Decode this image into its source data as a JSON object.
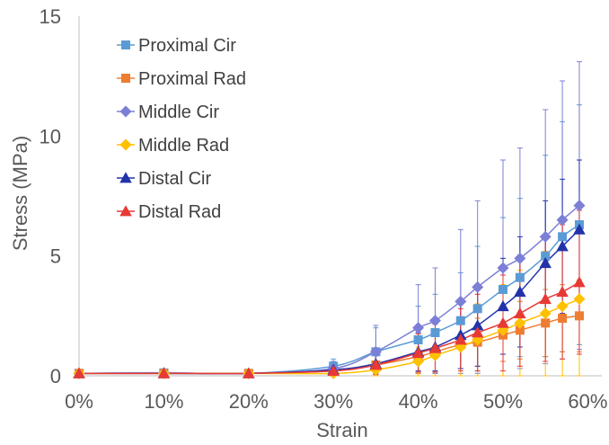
{
  "chart_data": {
    "type": "scatter",
    "title": "",
    "xlabel": "Strain",
    "ylabel": "Stress (MPa)",
    "xlim": [
      0,
      0.625
    ],
    "ylim": [
      0,
      15
    ],
    "x_ticks": [
      0,
      0.1,
      0.2,
      0.3,
      0.4,
      0.5,
      0.6
    ],
    "x_tick_labels": [
      "0%",
      "10%",
      "20%",
      "30%",
      "40%",
      "50%",
      "60%"
    ],
    "y_ticks": [
      0,
      5,
      10,
      15
    ],
    "y_tick_labels": [
      "0",
      "5",
      "10",
      "15"
    ],
    "grid": false,
    "legend_position": "top-left",
    "series": [
      {
        "name": "Proximal Cir",
        "color": "#5B9BD5",
        "marker": "square",
        "x": [
          0,
          0.1,
          0.2,
          0.3,
          0.35,
          0.4,
          0.42,
          0.45,
          0.47,
          0.5,
          0.52,
          0.55,
          0.57,
          0.59
        ],
        "y": [
          0.1,
          0.12,
          0.1,
          0.4,
          1.0,
          1.5,
          1.8,
          2.3,
          2.8,
          3.6,
          4.1,
          5.0,
          5.8,
          6.3
        ],
        "err": [
          0.05,
          0.05,
          0.05,
          0.3,
          1.0,
          1.4,
          1.6,
          2.0,
          2.6,
          3.0,
          3.3,
          4.2,
          4.8,
          5.0
        ]
      },
      {
        "name": "Proximal Rad",
        "color": "#ED7D31",
        "marker": "square",
        "x": [
          0,
          0.1,
          0.2,
          0.3,
          0.35,
          0.4,
          0.42,
          0.45,
          0.47,
          0.5,
          0.52,
          0.55,
          0.57,
          0.59
        ],
        "y": [
          0.1,
          0.1,
          0.1,
          0.2,
          0.45,
          0.8,
          1.0,
          1.3,
          1.4,
          1.7,
          1.9,
          2.2,
          2.4,
          2.5
        ],
        "err": [
          0.05,
          0.05,
          0.05,
          0.2,
          0.4,
          0.7,
          0.9,
          1.0,
          1.0,
          1.1,
          1.2,
          1.4,
          1.4,
          1.5
        ]
      },
      {
        "name": "Middle Cir",
        "color": "#7C7FD6",
        "marker": "diamond",
        "x": [
          0,
          0.1,
          0.2,
          0.3,
          0.35,
          0.4,
          0.42,
          0.45,
          0.47,
          0.5,
          0.52,
          0.55,
          0.57,
          0.59
        ],
        "y": [
          0.1,
          0.12,
          0.1,
          0.3,
          1.0,
          2.0,
          2.3,
          3.1,
          3.7,
          4.5,
          4.9,
          5.8,
          6.5,
          7.1
        ],
        "err": [
          0.05,
          0.05,
          0.05,
          0.3,
          1.1,
          1.8,
          2.2,
          3.0,
          3.6,
          4.5,
          4.6,
          5.3,
          5.8,
          6.0
        ]
      },
      {
        "name": "Middle Rad",
        "color": "#FFC000",
        "marker": "diamond",
        "x": [
          0,
          0.1,
          0.2,
          0.3,
          0.35,
          0.4,
          0.42,
          0.45,
          0.47,
          0.5,
          0.52,
          0.55,
          0.57,
          0.59
        ],
        "y": [
          0.1,
          0.1,
          0.1,
          0.1,
          0.25,
          0.6,
          0.85,
          1.2,
          1.5,
          1.9,
          2.2,
          2.6,
          2.9,
          3.2
        ],
        "err": [
          0.05,
          0.05,
          0.05,
          0.1,
          0.3,
          0.6,
          0.9,
          1.2,
          1.5,
          1.9,
          2.2,
          2.6,
          2.9,
          3.2
        ]
      },
      {
        "name": "Distal Cir",
        "color": "#2233AA",
        "marker": "triangle",
        "x": [
          0,
          0.1,
          0.2,
          0.3,
          0.35,
          0.4,
          0.42,
          0.45,
          0.47,
          0.5,
          0.52,
          0.55,
          0.57,
          0.59
        ],
        "y": [
          0.1,
          0.1,
          0.1,
          0.25,
          0.5,
          1.0,
          1.2,
          1.7,
          2.1,
          2.9,
          3.5,
          4.7,
          5.4,
          6.1
        ],
        "err": [
          0.05,
          0.05,
          0.05,
          0.2,
          0.4,
          0.8,
          1.0,
          1.4,
          1.7,
          2.0,
          2.3,
          2.6,
          2.8,
          2.9
        ]
      },
      {
        "name": "Distal Rad",
        "color": "#E83A35",
        "marker": "triangle",
        "x": [
          0,
          0.1,
          0.2,
          0.3,
          0.35,
          0.4,
          0.42,
          0.45,
          0.47,
          0.5,
          0.52,
          0.55,
          0.57,
          0.59
        ],
        "y": [
          0.1,
          0.1,
          0.1,
          0.2,
          0.45,
          0.95,
          1.15,
          1.5,
          1.8,
          2.2,
          2.6,
          3.2,
          3.5,
          3.9
        ],
        "err": [
          0.05,
          0.05,
          0.05,
          0.2,
          0.4,
          0.8,
          1.0,
          1.3,
          1.6,
          2.0,
          2.2,
          2.6,
          2.8,
          3.0
        ]
      }
    ]
  }
}
